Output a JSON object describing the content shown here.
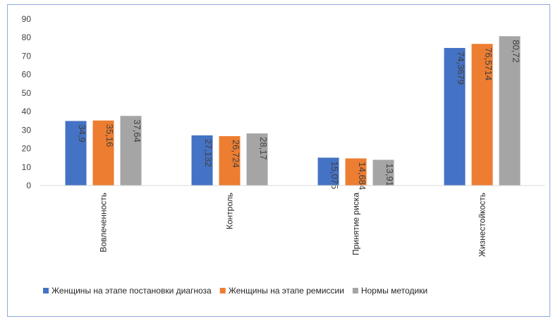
{
  "chart_data": {
    "type": "bar",
    "title": "",
    "xlabel": "",
    "ylabel": "",
    "ylim": [
      0,
      90
    ],
    "yticks": [
      0,
      10,
      20,
      30,
      40,
      50,
      60,
      70,
      80,
      90
    ],
    "grid": false,
    "legend_position": "bottom",
    "categories": [
      "Вовлеченность",
      "Контроль",
      "Принятие риска",
      "Жизнестойкость"
    ],
    "series": [
      {
        "name": "Женщины на этапе постановки диагноза",
        "color": "#4472c4",
        "values": [
          34.9,
          27.132,
          15.075,
          74.3679
        ],
        "labels": [
          "34,9",
          "27,132",
          "15,075",
          "74,3679"
        ]
      },
      {
        "name": "Женщины на этапе ремиссии",
        "color": "#ed7d31",
        "values": [
          35.16,
          26.724,
          14.684,
          76.5714
        ],
        "labels": [
          "35,16",
          "26,724",
          "14,684",
          "76,5714"
        ]
      },
      {
        "name": "Нормы методики",
        "color": "#a5a5a5",
        "values": [
          37.64,
          28.17,
          13.91,
          80.72
        ],
        "labels": [
          "37,64",
          "28,17",
          "13,91",
          "80,72"
        ]
      }
    ]
  }
}
